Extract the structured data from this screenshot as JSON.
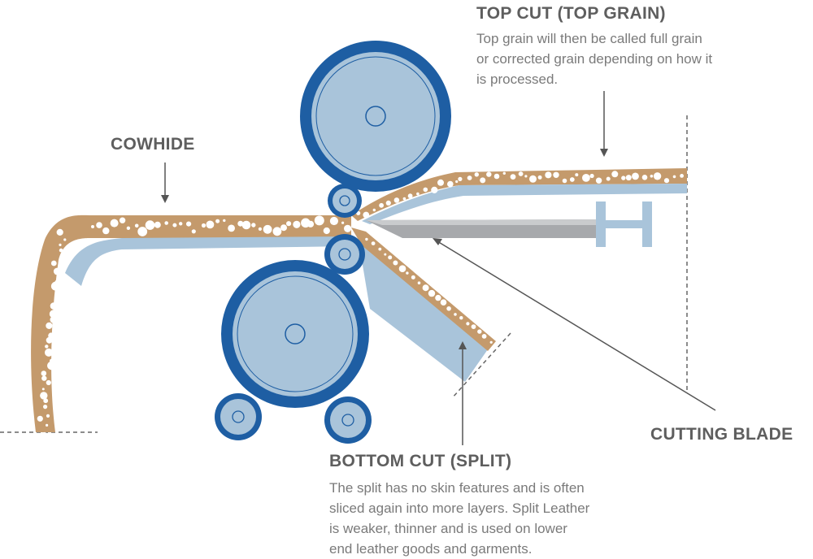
{
  "labels": {
    "top_cut": {
      "title": "TOP CUT (TOP GRAIN)",
      "lines": [
        "Top grain will then be called full grain",
        "or corrected grain depending on how it",
        "is processed."
      ]
    },
    "cowhide": {
      "title": "COWHIDE"
    },
    "cutting_blade": {
      "title": "CUTTING BLADE"
    },
    "bottom_cut": {
      "title": "BOTTOM CUT (SPLIT)",
      "lines": [
        "The split has no skin features and is often",
        "sliced again into more layers. Split Leather",
        "is weaker, thinner and is used on lower",
        "end leather goods and garments."
      ]
    }
  },
  "colors": {
    "hide": "#c49a6c",
    "leather_inner": "#a9c4da",
    "roller_dark": "#1e5ea3",
    "roller_light": "#a9c4da",
    "blade": "#a7a9ac",
    "text_title": "#5e5e5e",
    "text_body": "#7a7a7a"
  }
}
